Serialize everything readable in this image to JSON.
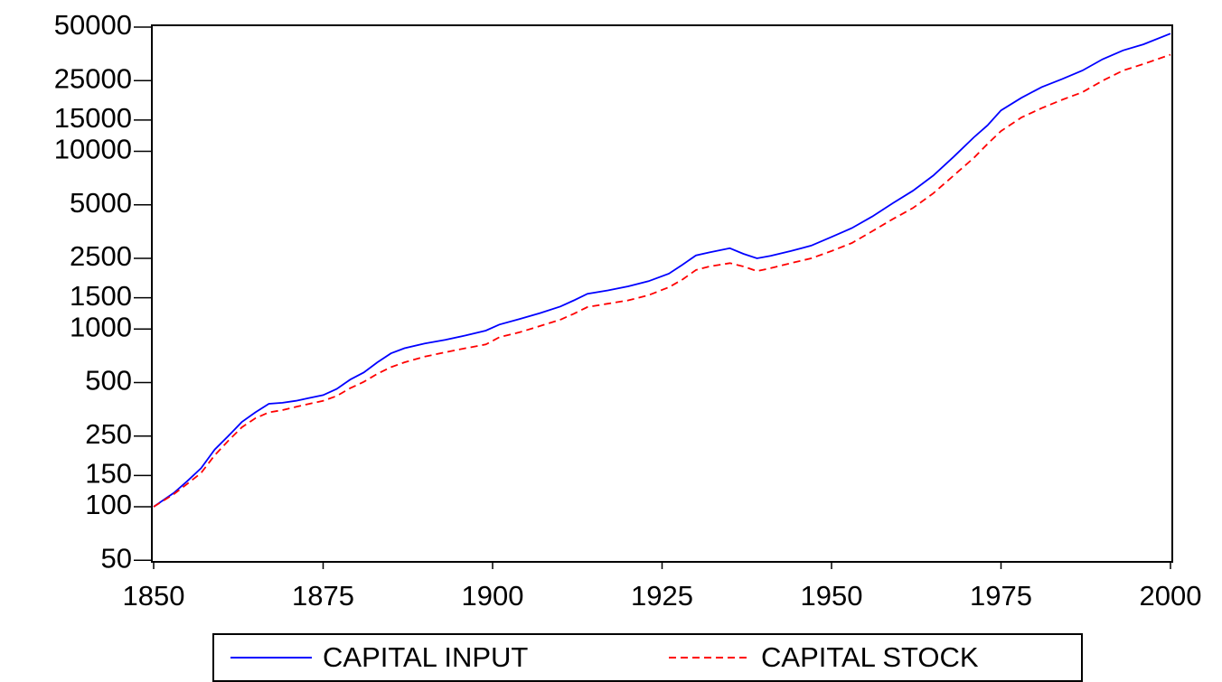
{
  "chart_data": {
    "type": "line",
    "log_y": true,
    "x": [
      1850,
      1853,
      1855,
      1857,
      1859,
      1861,
      1863,
      1865,
      1867,
      1869,
      1871,
      1873,
      1875,
      1877,
      1879,
      1881,
      1883,
      1885,
      1887,
      1890,
      1893,
      1896,
      1899,
      1901,
      1904,
      1907,
      1910,
      1912,
      1914,
      1917,
      1920,
      1923,
      1926,
      1928,
      1930,
      1932,
      1935,
      1937,
      1939,
      1941,
      1944,
      1947,
      1950,
      1953,
      1956,
      1959,
      1962,
      1965,
      1968,
      1971,
      1973,
      1975,
      1978,
      1981,
      1984,
      1987,
      1990,
      1993,
      1996,
      2000
    ],
    "series": [
      {
        "name": "CAPITAL INPUT",
        "color": "#0000ff",
        "dash": "solid",
        "values": [
          100,
          120,
          140,
          165,
          210,
          250,
          300,
          340,
          380,
          385,
          395,
          410,
          425,
          460,
          520,
          570,
          650,
          730,
          780,
          830,
          870,
          920,
          980,
          1060,
          1140,
          1230,
          1340,
          1450,
          1580,
          1650,
          1740,
          1860,
          2050,
          2300,
          2600,
          2700,
          2850,
          2650,
          2500,
          2580,
          2750,
          2950,
          3300,
          3700,
          4300,
          5100,
          6000,
          7300,
          9300,
          12000,
          14000,
          17000,
          20000,
          23000,
          25500,
          28500,
          33000,
          37000,
          40000,
          46000
        ]
      },
      {
        "name": "CAPITAL STOCK",
        "color": "#ff0000",
        "dash": "dashed",
        "values": [
          100,
          118,
          135,
          155,
          195,
          235,
          280,
          315,
          340,
          350,
          365,
          380,
          395,
          420,
          465,
          505,
          560,
          610,
          650,
          700,
          740,
          780,
          820,
          900,
          960,
          1040,
          1130,
          1220,
          1330,
          1390,
          1450,
          1550,
          1720,
          1900,
          2150,
          2250,
          2350,
          2250,
          2120,
          2200,
          2350,
          2500,
          2750,
          3050,
          3550,
          4150,
          4800,
          5800,
          7300,
          9200,
          11000,
          13000,
          15500,
          17500,
          19500,
          21500,
          25000,
          28500,
          31000,
          35000
        ]
      }
    ],
    "xlim": [
      1850,
      2000
    ],
    "xticks": [
      1850,
      1875,
      1900,
      1925,
      1950,
      1975,
      2000
    ],
    "ylim": [
      49,
      51200
    ],
    "yticks": [
      50,
      100,
      150,
      250,
      500,
      1000,
      1500,
      2500,
      5000,
      10000,
      15000,
      25000,
      50000
    ],
    "legend": "bottom"
  }
}
